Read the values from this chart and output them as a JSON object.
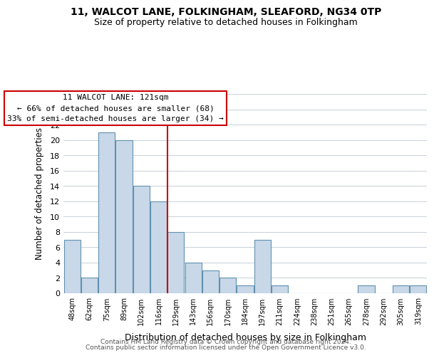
{
  "title": "11, WALCOT LANE, FOLKINGHAM, SLEAFORD, NG34 0TP",
  "subtitle": "Size of property relative to detached houses in Folkingham",
  "xlabel": "Distribution of detached houses by size in Folkingham",
  "ylabel": "Number of detached properties",
  "bar_color": "#c8d8e8",
  "bar_edge_color": "#6090b0",
  "categories": [
    "48sqm",
    "62sqm",
    "75sqm",
    "89sqm",
    "102sqm",
    "116sqm",
    "129sqm",
    "143sqm",
    "156sqm",
    "170sqm",
    "184sqm",
    "197sqm",
    "211sqm",
    "224sqm",
    "238sqm",
    "251sqm",
    "265sqm",
    "278sqm",
    "292sqm",
    "305sqm",
    "319sqm"
  ],
  "values": [
    7,
    2,
    21,
    20,
    14,
    12,
    8,
    4,
    3,
    2,
    1,
    7,
    1,
    0,
    0,
    0,
    0,
    1,
    0,
    1,
    1
  ],
  "ylim": [
    0,
    26
  ],
  "yticks": [
    0,
    2,
    4,
    6,
    8,
    10,
    12,
    14,
    16,
    18,
    20,
    22,
    24,
    26
  ],
  "property_line_x": 5.5,
  "annotation_title": "11 WALCOT LANE: 121sqm",
  "annotation_line1": "← 66% of detached houses are smaller (68)",
  "annotation_line2": "33% of semi-detached houses are larger (34) →",
  "footer1": "Contains HM Land Registry data © Crown copyright and database right 2024.",
  "footer2": "Contains public sector information licensed under the Open Government Licence v3.0.",
  "background_color": "#ffffff",
  "grid_color": "#c8d0d8",
  "annotation_box_edge": "#cc0000",
  "property_line_color": "#cc0000"
}
